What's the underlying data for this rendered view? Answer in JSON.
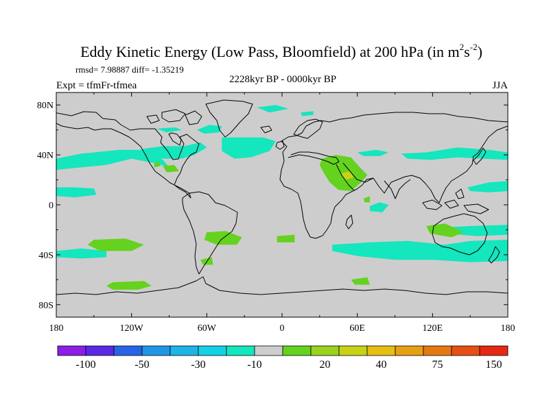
{
  "title": {
    "main": "Eddy Kinetic Energy (Low Pass, Bloomfield) at 200 hPa (in m",
    "sup1": "2",
    "mid": "s",
    "sup2": "-2",
    "end": ")"
  },
  "stats": "rmsd= 7.98887 diff= -1.35219",
  "experiment": "Expt = tfmFr-tfmea",
  "period": "2228kyr BP - 0000kyr BP",
  "season": "JJA",
  "chart_data": {
    "type": "heatmap",
    "projection": "cylindrical-equidistant",
    "x_range": [
      -180,
      180
    ],
    "y_range": [
      -90,
      90
    ],
    "x_ticks": [
      "180",
      "120W",
      "60W",
      "0",
      "60E",
      "120E",
      "180"
    ],
    "y_ticks": [
      "80N",
      "40N",
      "0",
      "40S",
      "80S"
    ],
    "colorbar": {
      "colors": [
        "#8c1ee6",
        "#5a28e6",
        "#2864e6",
        "#1e96e6",
        "#1eb4e6",
        "#14d2e6",
        "#14e6be",
        "#cdcdcd",
        "#64d21e",
        "#9bd21e",
        "#c8d214",
        "#e6be14",
        "#e6a014",
        "#e67814",
        "#e65014",
        "#e62814"
      ],
      "labels": [
        "-100",
        "-50",
        "-30",
        "-10",
        "20",
        "40",
        "75",
        "150"
      ]
    },
    "anomaly_regions": [
      {
        "level": "-10",
        "points": [
          [
            -180,
            28
          ],
          [
            -160,
            30
          ],
          [
            -140,
            32
          ],
          [
            -120,
            37
          ],
          [
            -100,
            33
          ],
          [
            -90,
            30
          ],
          [
            -95,
            36
          ],
          [
            -110,
            44
          ],
          [
            -130,
            44
          ],
          [
            -160,
            41
          ],
          [
            -180,
            37
          ]
        ]
      },
      {
        "level": "-10",
        "points": [
          [
            -124,
            40
          ],
          [
            -110,
            45
          ],
          [
            -95,
            47
          ],
          [
            -78,
            47
          ],
          [
            -65,
            50
          ],
          [
            -60,
            46
          ],
          [
            -70,
            40
          ],
          [
            -80,
            37
          ],
          [
            -100,
            37
          ],
          [
            -115,
            36
          ]
        ]
      },
      {
        "level": "-10",
        "points": [
          [
            -48,
            54
          ],
          [
            -35,
            54
          ],
          [
            -15,
            54
          ],
          [
            -5,
            51
          ],
          [
            -10,
            43
          ],
          [
            -25,
            38
          ],
          [
            -38,
            37
          ],
          [
            -48,
            43
          ]
        ]
      },
      {
        "level": "-10",
        "points": [
          [
            -68,
            60
          ],
          [
            -58,
            64
          ],
          [
            -48,
            63
          ],
          [
            -50,
            58
          ],
          [
            -62,
            57
          ]
        ]
      },
      {
        "level": "-10",
        "points": [
          [
            95,
            41
          ],
          [
            115,
            42
          ],
          [
            140,
            46
          ],
          [
            165,
            44
          ],
          [
            180,
            42
          ],
          [
            180,
            36
          ],
          [
            160,
            37
          ],
          [
            140,
            38
          ],
          [
            118,
            36
          ],
          [
            100,
            37
          ]
        ]
      },
      {
        "level": "-10",
        "points": [
          [
            60,
            42
          ],
          [
            75,
            44
          ],
          [
            85,
            42
          ],
          [
            78,
            39
          ],
          [
            65,
            39
          ]
        ]
      },
      {
        "level": "-10",
        "points": [
          [
            -180,
            14
          ],
          [
            -165,
            14
          ],
          [
            -150,
            13
          ],
          [
            -148,
            8
          ],
          [
            -165,
            6
          ],
          [
            -180,
            7
          ]
        ]
      },
      {
        "level": "-10",
        "points": [
          [
            148,
            14
          ],
          [
            165,
            18
          ],
          [
            180,
            19
          ],
          [
            180,
            11
          ],
          [
            165,
            10
          ],
          [
            150,
            11
          ]
        ]
      },
      {
        "level": "-10",
        "points": [
          [
            -180,
            -37
          ],
          [
            -160,
            -35
          ],
          [
            -140,
            -37
          ],
          [
            -140,
            -42
          ],
          [
            -160,
            -43
          ],
          [
            -180,
            -42
          ]
        ]
      },
      {
        "level": "-10",
        "points": [
          [
            40,
            -32
          ],
          [
            70,
            -30
          ],
          [
            100,
            -29
          ],
          [
            130,
            -32
          ],
          [
            150,
            -29
          ],
          [
            180,
            -28
          ],
          [
            180,
            -45
          ],
          [
            150,
            -46
          ],
          [
            120,
            -44
          ],
          [
            90,
            -44
          ],
          [
            60,
            -41
          ],
          [
            40,
            -37
          ]
        ]
      },
      {
        "level": "-10",
        "points": [
          [
            130,
            -18
          ],
          [
            150,
            -17
          ],
          [
            180,
            -16
          ],
          [
            180,
            -24
          ],
          [
            155,
            -25
          ],
          [
            130,
            -23
          ]
        ]
      },
      {
        "level": "-10",
        "points": [
          [
            70,
            -1
          ],
          [
            78,
            2
          ],
          [
            85,
            0
          ],
          [
            80,
            -6
          ],
          [
            70,
            -5
          ]
        ]
      },
      {
        "level": "-10",
        "points": [
          [
            -100,
            61
          ],
          [
            -85,
            62
          ],
          [
            -80,
            60
          ],
          [
            -92,
            58
          ]
        ]
      },
      {
        "level": "-10",
        "points": [
          [
            -20,
            78
          ],
          [
            -5,
            80
          ],
          [
            5,
            77
          ],
          [
            -10,
            74
          ]
        ]
      },
      {
        "level": "-10",
        "points": [
          [
            15,
            74
          ],
          [
            25,
            75
          ],
          [
            25,
            72
          ],
          [
            16,
            71
          ]
        ]
      },
      {
        "level": "20",
        "points": [
          [
            32,
            37
          ],
          [
            43,
            40
          ],
          [
            55,
            38
          ],
          [
            62,
            30
          ],
          [
            68,
            24
          ],
          [
            63,
            18
          ],
          [
            55,
            11
          ],
          [
            45,
            12
          ],
          [
            38,
            18
          ],
          [
            33,
            26
          ],
          [
            30,
            32
          ]
        ]
      },
      {
        "level": "20",
        "points": [
          [
            -60,
            -22
          ],
          [
            -45,
            -21
          ],
          [
            -32,
            -26
          ],
          [
            -36,
            -32
          ],
          [
            -52,
            -32
          ],
          [
            -62,
            -28
          ]
        ]
      },
      {
        "level": "20",
        "points": [
          [
            -4,
            -25
          ],
          [
            10,
            -24
          ],
          [
            10,
            -30
          ],
          [
            -4,
            -30
          ]
        ]
      },
      {
        "level": "20",
        "points": [
          [
            -150,
            -28
          ],
          [
            -125,
            -27
          ],
          [
            -110,
            -32
          ],
          [
            -120,
            -37
          ],
          [
            -145,
            -37
          ],
          [
            -155,
            -32
          ]
        ]
      },
      {
        "level": "20",
        "points": [
          [
            -135,
            -62
          ],
          [
            -110,
            -61
          ],
          [
            -104,
            -65
          ],
          [
            -115,
            -68
          ],
          [
            -135,
            -68
          ],
          [
            -140,
            -65
          ]
        ]
      },
      {
        "level": "20",
        "points": [
          [
            115,
            -17
          ],
          [
            130,
            -15
          ],
          [
            145,
            -22
          ],
          [
            135,
            -26
          ],
          [
            118,
            -23
          ]
        ]
      },
      {
        "level": "20",
        "points": [
          [
            55,
            -60
          ],
          [
            68,
            -58
          ],
          [
            70,
            -64
          ],
          [
            58,
            -64
          ]
        ]
      },
      {
        "level": "20",
        "points": [
          [
            -95,
            31
          ],
          [
            -86,
            32
          ],
          [
            -82,
            27
          ],
          [
            -92,
            26
          ]
        ]
      },
      {
        "level": "20",
        "points": [
          [
            -102,
            33
          ],
          [
            -98,
            35
          ],
          [
            -97,
            31
          ],
          [
            -102,
            30
          ]
        ]
      },
      {
        "level": "20",
        "points": [
          [
            -65,
            -44
          ],
          [
            -56,
            -42
          ],
          [
            -55,
            -48
          ],
          [
            -63,
            -48
          ]
        ]
      },
      {
        "level": "20",
        "points": [
          [
            65,
            5
          ],
          [
            70,
            7
          ],
          [
            70,
            2
          ],
          [
            66,
            2
          ]
        ]
      },
      {
        "level": "40",
        "points": [
          [
            47,
            25
          ],
          [
            54,
            27
          ],
          [
            57,
            22
          ],
          [
            51,
            20
          ]
        ]
      }
    ]
  }
}
